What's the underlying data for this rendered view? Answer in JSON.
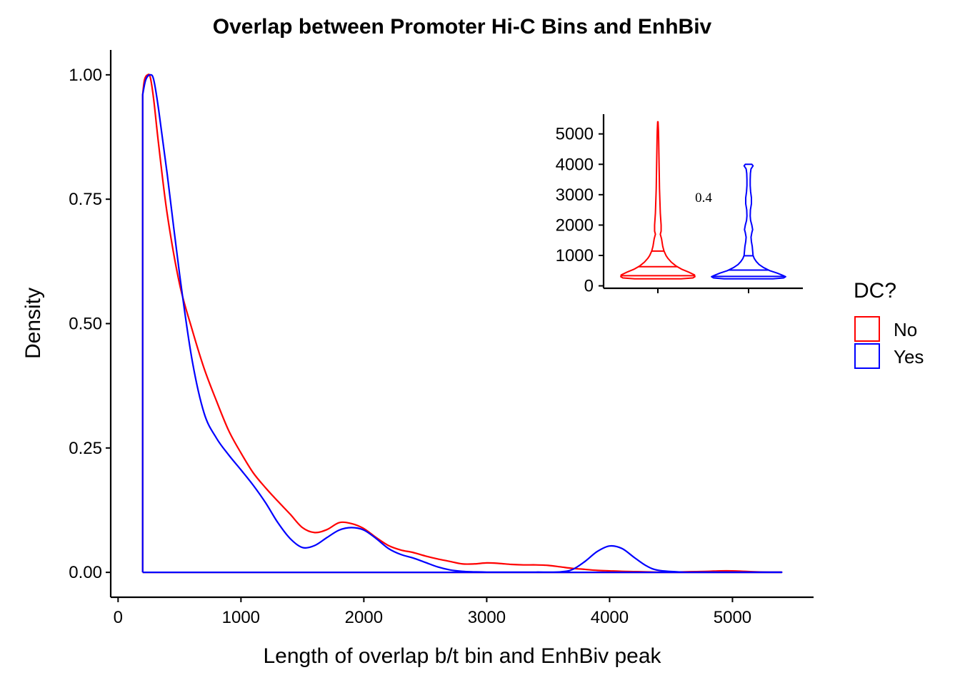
{
  "chart_data": [
    {
      "type": "line",
      "subtype": "density",
      "title": "Overlap between Promoter Hi-C Bins and EnhBiv",
      "xlabel": "Length of overlap b/t bin and EnhBiv peak",
      "ylabel": "Density",
      "xlim": [
        -60,
        5660
      ],
      "ylim": [
        -0.05,
        1.05
      ],
      "xticks": [
        0,
        1000,
        2000,
        3000,
        4000,
        5000
      ],
      "xtick_labels": [
        "0",
        "1000",
        "2000",
        "3000",
        "4000",
        "5000"
      ],
      "yticks": [
        0,
        0.25,
        0.5,
        0.75,
        1.0
      ],
      "ytick_labels": [
        "0.00",
        "0.25",
        "0.50",
        "0.75",
        "1.00"
      ],
      "grid": false,
      "legend": {
        "title": "DC?",
        "placement": "right",
        "entries": [
          {
            "label": "No",
            "color": "#ff0000"
          },
          {
            "label": "Yes",
            "color": "#0000ff"
          }
        ]
      },
      "series": [
        {
          "name": "No",
          "color": "#ff0000",
          "x": [
            200,
            200,
            215,
            240,
            262,
            290,
            330,
            400,
            500,
            600,
            700,
            800,
            900,
            1000,
            1100,
            1200,
            1300,
            1400,
            1500,
            1600,
            1700,
            1800,
            1900,
            2000,
            2100,
            2200,
            2300,
            2400,
            2500,
            2600,
            2700,
            2800,
            2900,
            3000,
            3100,
            3200,
            3300,
            3400,
            3500,
            3600,
            3700,
            3800,
            3900,
            4000,
            4100,
            4200,
            4300,
            4400,
            4500,
            4600,
            4700,
            4800,
            4900,
            5000,
            5100,
            5200,
            5300,
            5400,
            5400
          ],
          "y": [
            0,
            0.96,
            0.99,
            1.0,
            0.995,
            0.95,
            0.86,
            0.72,
            0.58,
            0.49,
            0.41,
            0.345,
            0.285,
            0.24,
            0.2,
            0.17,
            0.143,
            0.117,
            0.09,
            0.08,
            0.086,
            0.1,
            0.098,
            0.088,
            0.07,
            0.054,
            0.045,
            0.04,
            0.033,
            0.027,
            0.022,
            0.017,
            0.017,
            0.019,
            0.018,
            0.016,
            0.015,
            0.015,
            0.014,
            0.011,
            0.008,
            0.006,
            0.004,
            0.003,
            0.002,
            0.0015,
            0.001,
            0.0005,
            0.0005,
            0.001,
            0.0015,
            0.002,
            0.003,
            0.003,
            0.002,
            0.001,
            0.0005,
            0.0005,
            0
          ]
        },
        {
          "name": "Yes",
          "color": "#0000ff",
          "x": [
            200,
            200,
            225,
            260,
            290,
            330,
            400,
            500,
            600,
            700,
            800,
            900,
            1000,
            1100,
            1200,
            1300,
            1400,
            1500,
            1600,
            1700,
            1800,
            1900,
            2000,
            2100,
            2200,
            2300,
            2400,
            2500,
            2600,
            2700,
            2800,
            2900,
            3000,
            3200,
            3400,
            3600,
            3700,
            3800,
            3900,
            4000,
            4100,
            4200,
            4300,
            4400,
            4600,
            4800,
            5000,
            5200,
            5400,
            5400
          ],
          "y": [
            0,
            0.96,
            0.99,
            1.0,
            0.99,
            0.93,
            0.8,
            0.6,
            0.43,
            0.32,
            0.27,
            0.236,
            0.206,
            0.175,
            0.14,
            0.1,
            0.068,
            0.05,
            0.054,
            0.07,
            0.085,
            0.09,
            0.085,
            0.068,
            0.048,
            0.036,
            0.029,
            0.02,
            0.011,
            0.005,
            0.002,
            0.001,
            0.0005,
            0.0005,
            0.0005,
            0.001,
            0.006,
            0.022,
            0.042,
            0.053,
            0.048,
            0.03,
            0.013,
            0.004,
            0.0005,
            0.0005,
            0.0005,
            0.0005,
            0.0005,
            0
          ]
        }
      ]
    },
    {
      "type": "violin",
      "inset": true,
      "ylim": [
        -80,
        5650
      ],
      "yticks": [
        0,
        1000,
        2000,
        3000,
        4000,
        5000
      ],
      "ytick_labels": [
        "0",
        "1000",
        "2000",
        "3000",
        "4000",
        "5000"
      ],
      "annotation": "0.4",
      "groups": [
        {
          "name": "No",
          "color": "#ff0000",
          "quantiles": [
            335,
            630,
            1145
          ],
          "max": 5400,
          "profile_y": [
            230,
            260,
            300,
            360,
            450,
            550,
            650,
            780,
            900,
            1000,
            1150,
            1300,
            1550,
            1700,
            1800,
            2000,
            2400,
            2800,
            3200,
            3600,
            4000,
            4400,
            4800,
            5100,
            5400
          ],
          "profile_w": [
            0.57,
            0.86,
            0.91,
            0.9,
            0.76,
            0.58,
            0.45,
            0.33,
            0.25,
            0.2,
            0.15,
            0.12,
            0.09,
            0.06,
            0.08,
            0.08,
            0.06,
            0.05,
            0.04,
            0.035,
            0.03,
            0.025,
            0.02,
            0.015,
            0.005
          ]
        },
        {
          "name": "Yes",
          "color": "#0000ff",
          "quantiles": [
            310,
            520,
            990
          ],
          "max": 4000,
          "profile_y": [
            230,
            260,
            300,
            350,
            420,
            500,
            600,
            700,
            800,
            900,
            1000,
            1150,
            1300,
            1450,
            1600,
            1750,
            1850,
            2000,
            2150,
            2300,
            2500,
            2700,
            2900,
            3100,
            3300,
            3500,
            3700,
            3850,
            3950,
            4000
          ],
          "profile_w": [
            0.6,
            0.86,
            0.91,
            0.83,
            0.7,
            0.52,
            0.37,
            0.26,
            0.19,
            0.14,
            0.11,
            0.1,
            0.09,
            0.07,
            0.06,
            0.08,
            0.1,
            0.08,
            0.05,
            0.04,
            0.045,
            0.07,
            0.07,
            0.05,
            0.04,
            0.04,
            0.045,
            0.06,
            0.11,
            0.08
          ]
        }
      ]
    }
  ]
}
